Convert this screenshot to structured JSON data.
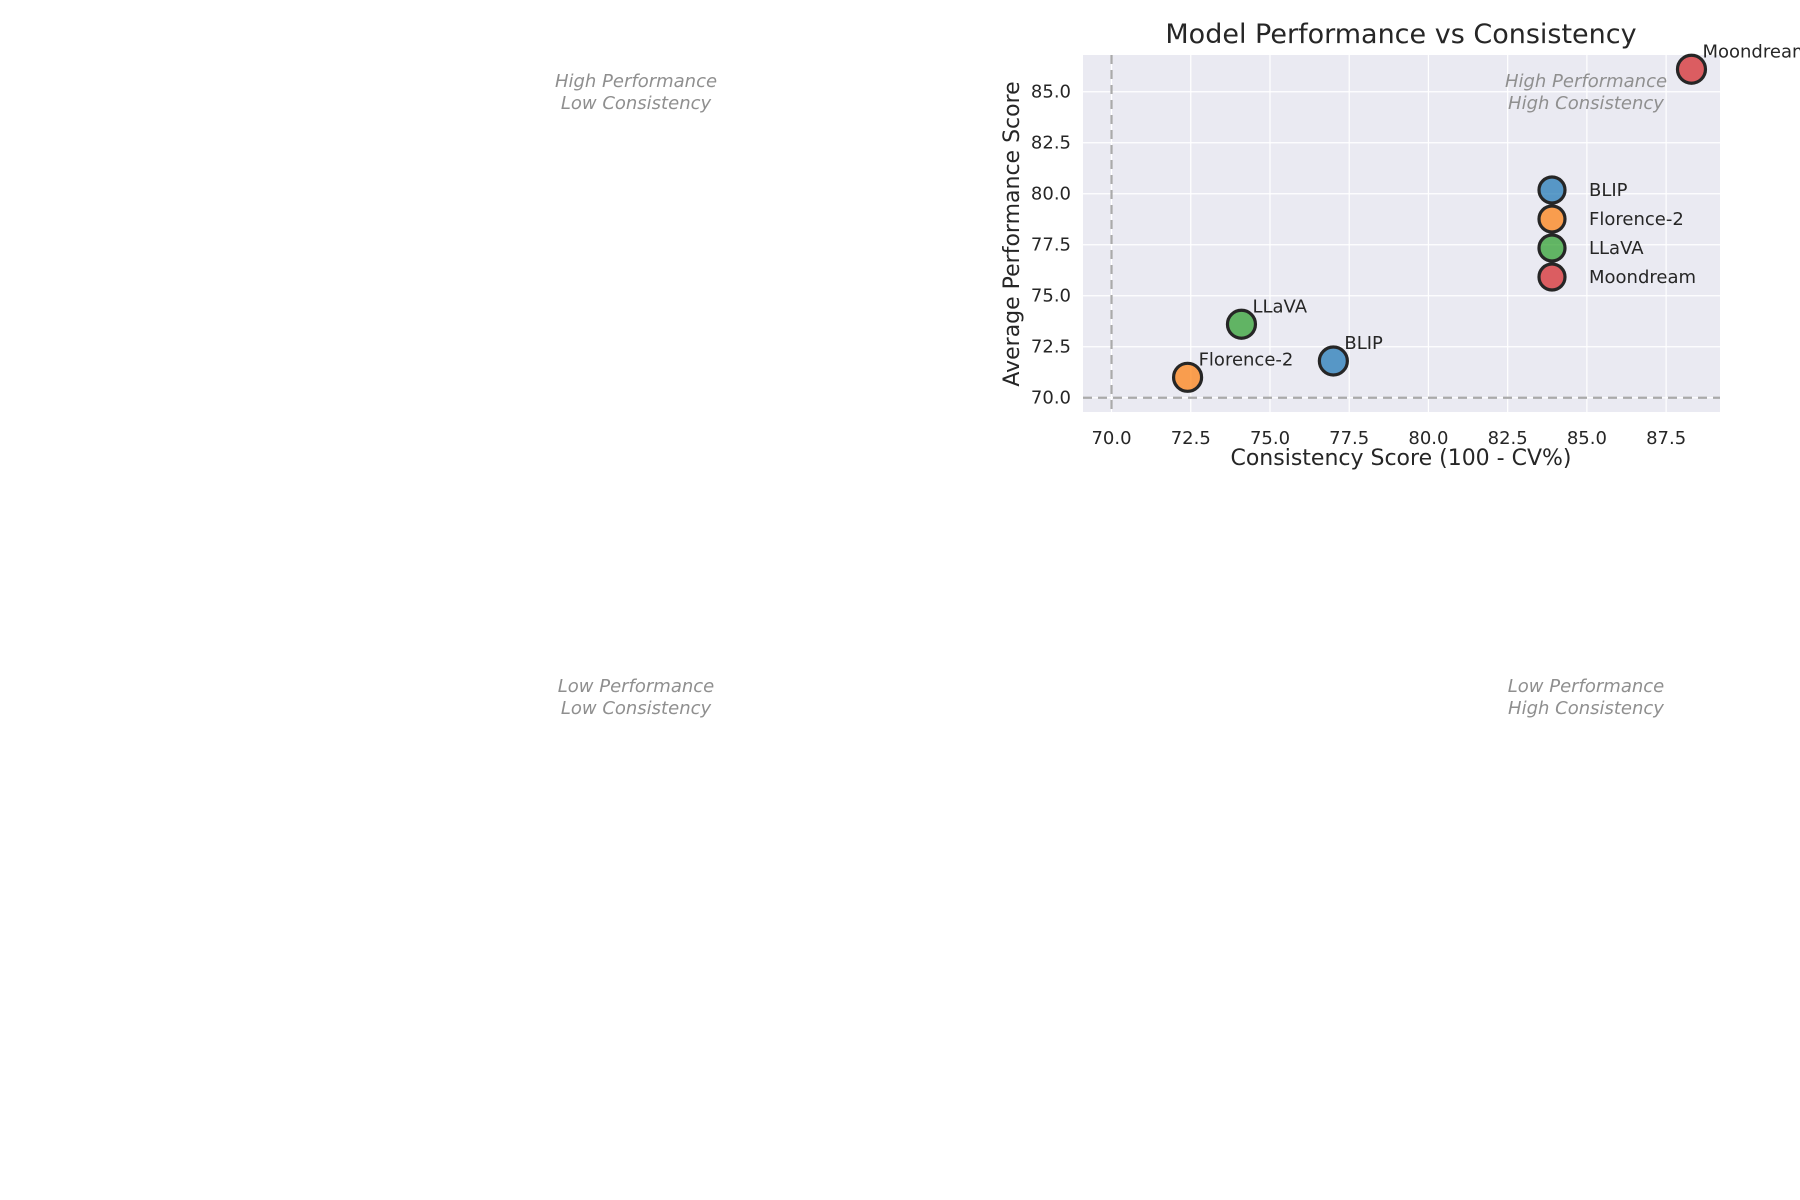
{
  "chart_data": {
    "type": "scatter",
    "title": "Model Performance vs Consistency",
    "xlabel": "Consistency Score (100 - CV%)",
    "ylabel": "Average Performance Score",
    "xlim": [
      69.1,
      89.2
    ],
    "ylim": [
      69.3,
      86.8
    ],
    "x_ticks": [
      70.0,
      72.5,
      75.0,
      77.5,
      80.0,
      82.5,
      85.0,
      87.5
    ],
    "y_ticks": [
      70.0,
      72.5,
      75.0,
      77.5,
      80.0,
      82.5,
      85.0
    ],
    "grid": true,
    "reference_lines": {
      "x": 70.0,
      "y": 70.0
    },
    "legend_position": "right",
    "series": [
      {
        "name": "BLIP",
        "x": 77.0,
        "y": 71.8,
        "color": "#1f77b4"
      },
      {
        "name": "Florence-2",
        "x": 72.4,
        "y": 71.0,
        "color": "#ff7f0e"
      },
      {
        "name": "LLaVA",
        "x": 74.1,
        "y": 73.6,
        "color": "#2ca02c"
      },
      {
        "name": "Moondream",
        "x": 88.3,
        "y": 86.1,
        "color": "#d62728"
      }
    ],
    "quadrant_labels": [
      {
        "line1": "High Performance",
        "line2": "Low Consistency"
      },
      {
        "line1": "High Performance",
        "line2": "High Consistency"
      },
      {
        "line1": "Low Performance",
        "line2": "Low Consistency"
      },
      {
        "line1": "Low Performance",
        "line2": "High Consistency"
      }
    ]
  }
}
